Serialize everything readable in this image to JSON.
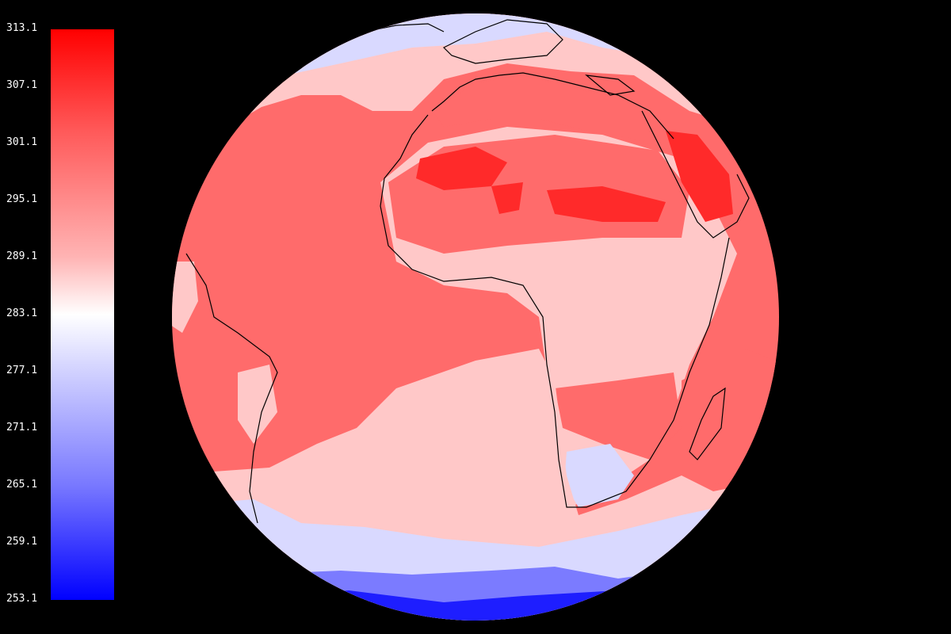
{
  "colorbar": {
    "ticks": [
      "313.1",
      "307.1",
      "301.1",
      "295.1",
      "289.1",
      "283.1",
      "277.1",
      "271.1",
      "265.1",
      "259.1",
      "253.1"
    ],
    "colors": {
      "max": "#ff0000",
      "mid": "#ffffff",
      "min": "#0000ff"
    }
  },
  "map": {
    "projection": "orthographic",
    "view": "Atlantic / Africa hemisphere",
    "colors": {
      "ocean_warm": "#ff6b6b",
      "ocean_mild": "#ffc8c8",
      "cool": "#d9d9ff",
      "cold": "#7b7bff",
      "very_cold": "#1e1eff",
      "hot": "#ff2a2a",
      "coastline": "#000000",
      "background": "#000000"
    }
  }
}
